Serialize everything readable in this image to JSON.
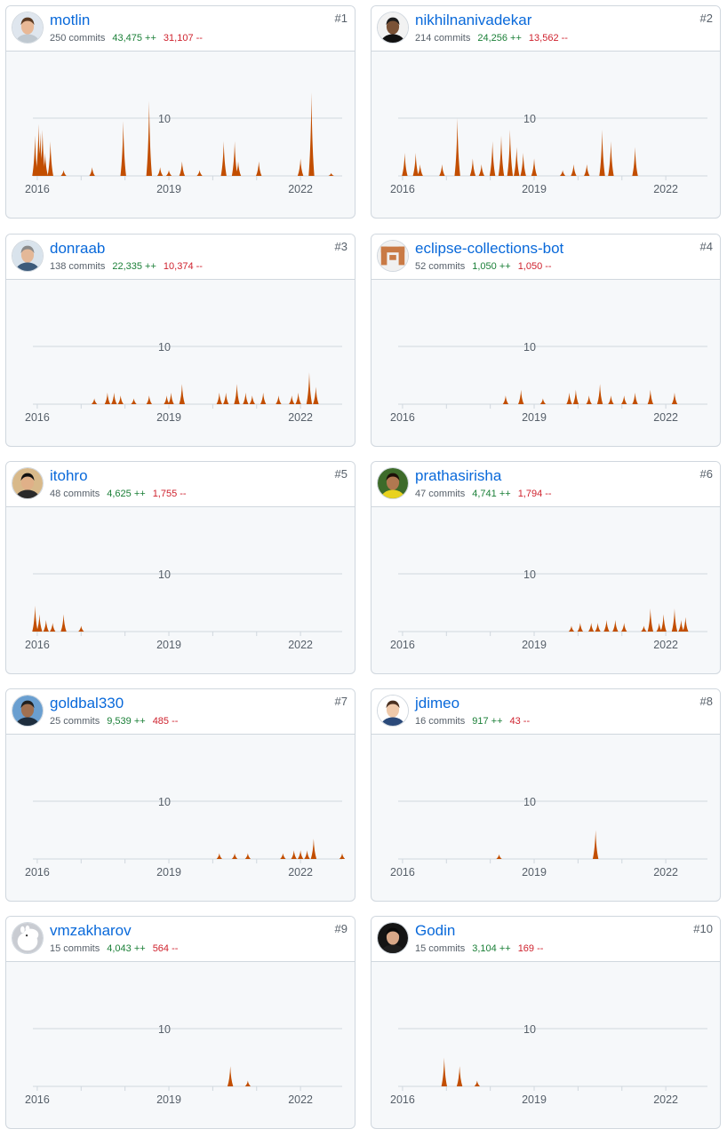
{
  "colors": {
    "link": "#0969da",
    "additions": "#1a7f37",
    "deletions": "#cf222e",
    "area": "#c24e00"
  },
  "cards": [
    {
      "rank": "#1",
      "login": "motlin",
      "commits": "250 commits",
      "additions": "43,475 ++",
      "deletions": "31,107 --",
      "avatar": {
        "icon": "user-avatar",
        "bg": "#dfe6ee",
        "skin": "#e8b896",
        "hair": "#5b3a22",
        "shirt": "#bfc8d0"
      }
    },
    {
      "rank": "#2",
      "login": "nikhilnanivadekar",
      "commits": "214 commits",
      "additions": "24,256 ++",
      "deletions": "13,562 --",
      "avatar": {
        "icon": "user-avatar",
        "bg": "#f2f2f2",
        "skin": "#7a5236",
        "hair": "#1b1b1b",
        "shirt": "#111111"
      }
    },
    {
      "rank": "#3",
      "login": "donraab",
      "commits": "138 commits",
      "additions": "22,335 ++",
      "deletions": "10,374 --",
      "avatar": {
        "icon": "user-avatar",
        "bg": "#d9e3ec",
        "skin": "#e4b898",
        "hair": "#8a8a8a",
        "shirt": "#3c5a7a"
      }
    },
    {
      "rank": "#4",
      "login": "eclipse-collections-bot",
      "commits": "52 commits",
      "additions": "1,050 ++",
      "deletions": "1,050 --",
      "avatar": {
        "icon": "identicon-avatar",
        "bg": "#f0f0f0",
        "fg": "#c97a45"
      }
    },
    {
      "rank": "#5",
      "login": "itohro",
      "commits": "48 commits",
      "additions": "4,625 ++",
      "deletions": "1,755 --",
      "avatar": {
        "icon": "user-avatar",
        "bg": "#d8b98a",
        "skin": "#e0b088",
        "hair": "#111111",
        "shirt": "#2a2a2a"
      }
    },
    {
      "rank": "#6",
      "login": "prathasirisha",
      "commits": "47 commits",
      "additions": "4,741 ++",
      "deletions": "1,794 --",
      "avatar": {
        "icon": "user-avatar",
        "bg": "#3d6b2a",
        "skin": "#b07850",
        "hair": "#1c1008",
        "shirt": "#e8d21e"
      }
    },
    {
      "rank": "#7",
      "login": "goldbal330",
      "commits": "25 commits",
      "additions": "9,539 ++",
      "deletions": "485 --",
      "avatar": {
        "icon": "user-avatar",
        "bg": "#6a9fd0",
        "skin": "#a07050",
        "hair": "#202020",
        "shirt": "#1e2e3e"
      }
    },
    {
      "rank": "#8",
      "login": "jdimeo",
      "commits": "16 commits",
      "additions": "917 ++",
      "deletions": "43 --",
      "avatar": {
        "icon": "user-avatar",
        "bg": "#ffffff",
        "skin": "#efc9aa",
        "hair": "#4a3020",
        "shirt": "#2b4a7a"
      }
    },
    {
      "rank": "#9",
      "login": "vmzakharov",
      "commits": "15 commits",
      "additions": "4,043 ++",
      "deletions": "564 --",
      "avatar": {
        "icon": "moomin-avatar",
        "bg": "#c9ccd2",
        "fg": "#ffffff"
      }
    },
    {
      "rank": "#10",
      "login": "Godin",
      "commits": "15 commits",
      "additions": "3,104 ++",
      "deletions": "169 --",
      "avatar": {
        "icon": "user-avatar",
        "bg": "#141414",
        "skin": "#d9a888",
        "hair": "#0a0a0a",
        "shirt": "#1e1e1e"
      }
    }
  ],
  "chart_data": {
    "type": "area",
    "y_tick": "10",
    "ylim": [
      0,
      15
    ],
    "xlim": [
      2015.9,
      2022.95
    ],
    "x_ticks": [
      "2016",
      "2019",
      "2022"
    ],
    "grid": true,
    "series": [
      {
        "values": [
          [
            2015.95,
            7
          ],
          [
            2016.03,
            9
          ],
          [
            2016.07,
            7.5
          ],
          [
            2016.12,
            8
          ],
          [
            2016.18,
            4
          ],
          [
            2016.3,
            6
          ],
          [
            2016.6,
            1
          ],
          [
            2017.25,
            1.5
          ],
          [
            2017.96,
            9.5
          ],
          [
            2018.55,
            13
          ],
          [
            2018.8,
            1.5
          ],
          [
            2019.0,
            1
          ],
          [
            2019.3,
            2.5
          ],
          [
            2019.7,
            1
          ],
          [
            2020.25,
            6
          ],
          [
            2020.5,
            6
          ],
          [
            2020.58,
            2.5
          ],
          [
            2021.05,
            2.5
          ],
          [
            2022.0,
            3
          ],
          [
            2022.25,
            14.5
          ],
          [
            2022.7,
            0.5
          ]
        ]
      },
      {
        "values": [
          [
            2016.05,
            4
          ],
          [
            2016.3,
            4
          ],
          [
            2016.4,
            2
          ],
          [
            2016.9,
            2
          ],
          [
            2017.25,
            10
          ],
          [
            2017.6,
            3
          ],
          [
            2017.8,
            2
          ],
          [
            2018.05,
            6
          ],
          [
            2018.25,
            7
          ],
          [
            2018.45,
            8
          ],
          [
            2018.6,
            5
          ],
          [
            2018.75,
            4
          ],
          [
            2019.0,
            3
          ],
          [
            2019.65,
            1
          ],
          [
            2019.9,
            2
          ],
          [
            2020.2,
            2
          ],
          [
            2020.55,
            8
          ],
          [
            2020.75,
            6
          ],
          [
            2021.3,
            5
          ]
        ]
      },
      {
        "values": [
          [
            2017.3,
            1
          ],
          [
            2017.6,
            2
          ],
          [
            2017.75,
            2
          ],
          [
            2017.9,
            1.5
          ],
          [
            2018.2,
            1
          ],
          [
            2018.55,
            1.5
          ],
          [
            2018.95,
            1.5
          ],
          [
            2019.05,
            2
          ],
          [
            2019.3,
            3.5
          ],
          [
            2020.15,
            2
          ],
          [
            2020.3,
            2
          ],
          [
            2020.55,
            3.5
          ],
          [
            2020.75,
            2
          ],
          [
            2020.9,
            1.5
          ],
          [
            2021.15,
            2
          ],
          [
            2021.5,
            1.5
          ],
          [
            2021.8,
            1.5
          ],
          [
            2021.95,
            2
          ],
          [
            2022.2,
            5.5
          ],
          [
            2022.35,
            3
          ]
        ]
      },
      {
        "values": [
          [
            2018.35,
            1.5
          ],
          [
            2018.7,
            2.5
          ],
          [
            2019.2,
            1
          ],
          [
            2019.8,
            2
          ],
          [
            2019.95,
            2.5
          ],
          [
            2020.25,
            1.5
          ],
          [
            2020.5,
            3.5
          ],
          [
            2020.75,
            1.5
          ],
          [
            2021.05,
            1.5
          ],
          [
            2021.3,
            2
          ],
          [
            2021.65,
            2.5
          ],
          [
            2022.2,
            2
          ]
        ]
      },
      {
        "values": [
          [
            2015.95,
            4.5
          ],
          [
            2016.05,
            3
          ],
          [
            2016.2,
            2
          ],
          [
            2016.35,
            1.5
          ],
          [
            2016.6,
            3
          ],
          [
            2017.0,
            1
          ]
        ]
      },
      {
        "values": [
          [
            2019.85,
            1
          ],
          [
            2020.05,
            1.5
          ],
          [
            2020.3,
            1.5
          ],
          [
            2020.45,
            1.5
          ],
          [
            2020.65,
            2
          ],
          [
            2020.85,
            2
          ],
          [
            2021.05,
            1.5
          ],
          [
            2021.5,
            1
          ],
          [
            2021.65,
            4
          ],
          [
            2021.85,
            1.5
          ],
          [
            2021.95,
            3
          ],
          [
            2022.2,
            4
          ],
          [
            2022.35,
            2
          ],
          [
            2022.45,
            2.5
          ]
        ]
      },
      {
        "values": [
          [
            2020.15,
            1
          ],
          [
            2020.5,
            1
          ],
          [
            2020.8,
            1
          ],
          [
            2021.6,
            1
          ],
          [
            2021.85,
            1.5
          ],
          [
            2022.0,
            1.5
          ],
          [
            2022.15,
            1.5
          ],
          [
            2022.3,
            3.5
          ],
          [
            2022.95,
            1
          ]
        ]
      },
      {
        "values": [
          [
            2018.2,
            0.8
          ],
          [
            2020.4,
            5
          ]
        ]
      },
      {
        "values": [
          [
            2020.4,
            3.5
          ],
          [
            2020.8,
            1
          ]
        ]
      },
      {
        "values": [
          [
            2016.95,
            5
          ],
          [
            2017.3,
            3.5
          ],
          [
            2017.7,
            1
          ]
        ]
      }
    ]
  }
}
